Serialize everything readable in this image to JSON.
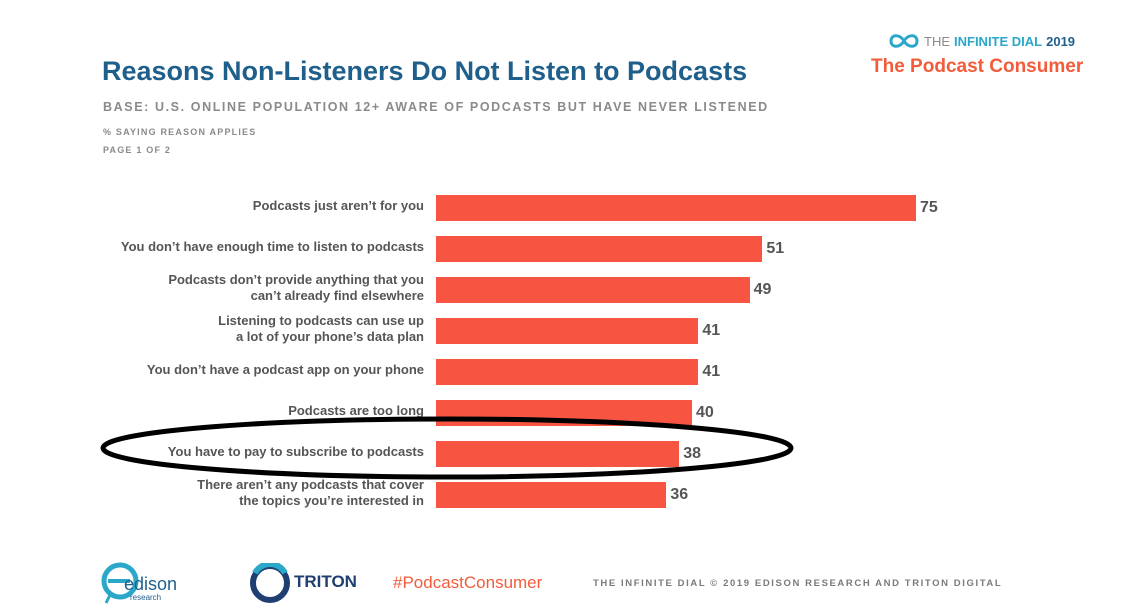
{
  "header": {
    "title": "Reasons Non-Listeners Do Not Listen to Podcasts",
    "base": "BASE: U.S. ONLINE POPULATION 12+ AWARE OF PODCASTS BUT HAVE NEVER LISTENED",
    "note_percent": "% SAYING REASON APPLIES",
    "note_page": "PAGE 1 OF 2"
  },
  "brand": {
    "the": "THE",
    "infinite": "INFINITE DIAL",
    "year": "2019",
    "subtitle": "The Podcast Consumer"
  },
  "footer": {
    "edison": "edison",
    "edison_sub": "research",
    "triton": "TRITON",
    "hashtag": "#PodcastConsumer",
    "copyright": "THE INFINITE DIAL   © 2019 EDISON RESEARCH AND TRITON DIGITAL"
  },
  "colors": {
    "bar": "#f75441",
    "title": "#1f5f8b",
    "accent": "#f25c3b"
  },
  "chart_data": {
    "type": "bar",
    "orientation": "horizontal",
    "categories": [
      "Podcasts just aren’t for you",
      "You don’t have enough time to listen to podcasts",
      "Podcasts don’t provide anything that you\ncan’t already find elsewhere",
      "Listening to podcasts can use up\na lot of your phone’s data plan",
      "You don’t have a podcast app on your phone",
      "Podcasts are too long",
      "You have to pay to subscribe to podcasts",
      "There aren’t any podcasts that cover\nthe topics you’re interested in"
    ],
    "values": [
      75,
      51,
      49,
      41,
      41,
      40,
      38,
      36
    ],
    "xlim": [
      0,
      100
    ],
    "highlighted_category": "You have to pay to subscribe to podcasts",
    "grid": false,
    "legend": "none"
  }
}
